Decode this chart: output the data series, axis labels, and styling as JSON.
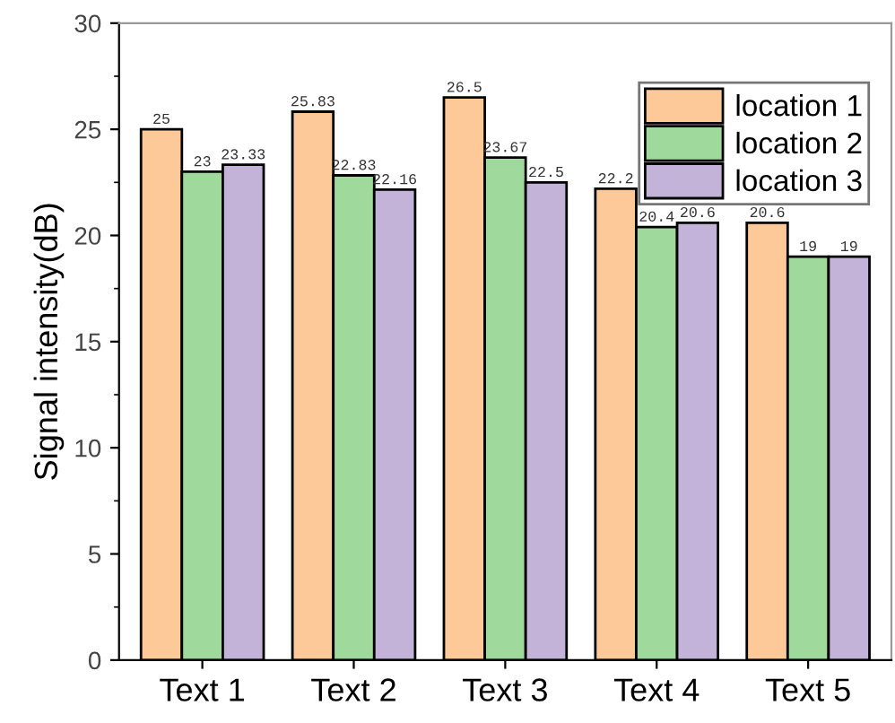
{
  "chart_data": {
    "type": "bar",
    "ylabel": "Signal intensity(dB)",
    "categories": [
      "Text 1",
      "Text 2",
      "Text 3",
      "Text 4",
      "Text 5"
    ],
    "series": [
      {
        "name": "location 1",
        "color": "#fdc998",
        "values": [
          25,
          25.83,
          26.5,
          22.2,
          20.6
        ]
      },
      {
        "name": "location 2",
        "color": "#9fd99b",
        "values": [
          23,
          22.83,
          23.67,
          20.4,
          19
        ]
      },
      {
        "name": "location 3",
        "color": "#c3b3d9",
        "values": [
          23.33,
          22.16,
          22.5,
          20.6,
          19
        ]
      }
    ],
    "ylim": [
      0,
      30
    ],
    "yticks": [
      0,
      5,
      10,
      15,
      20,
      25,
      30
    ],
    "data_labels": true,
    "legend": "top right",
    "grid": false
  }
}
